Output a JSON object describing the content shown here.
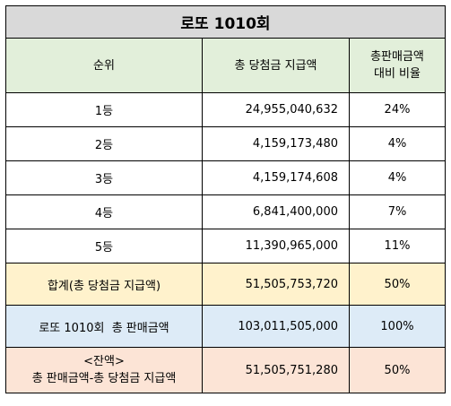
{
  "title": "로또 1010회",
  "headers": {
    "rank": "순위",
    "total_prize": "총 당첨금 지급액",
    "ratio_line1": "총판매금액",
    "ratio_line2": "대비 비율"
  },
  "rows": [
    {
      "rank": "1등",
      "amount": "24,955,040,632",
      "ratio": "24%"
    },
    {
      "rank": "2등",
      "amount": "4,159,173,480",
      "ratio": "4%"
    },
    {
      "rank": "3등",
      "amount": "4,159,174,608",
      "ratio": "4%"
    },
    {
      "rank": "4등",
      "amount": "6,841,400,000",
      "ratio": "7%"
    },
    {
      "rank": "5등",
      "amount": "11,390,965,000",
      "ratio": "11%"
    }
  ],
  "total": {
    "label": "합계(총 당첨금 지급액)",
    "amount": "51,505,753,720",
    "ratio": "50%"
  },
  "sales": {
    "label": "로또 1010회  총 판매금액",
    "amount": "103,011,505,000",
    "ratio": "100%"
  },
  "remain": {
    "label_line1": "<잔액>",
    "label_line2": "총 판매금액-총 당첨금 지급액",
    "amount": "51,505,751,280",
    "ratio": "50%"
  }
}
